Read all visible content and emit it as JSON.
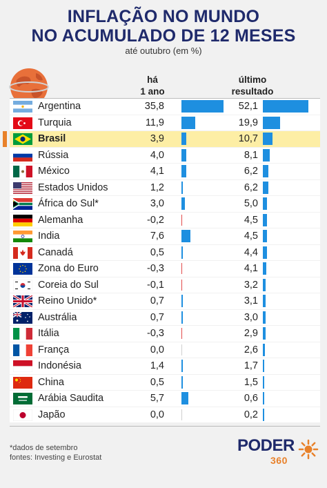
{
  "header": {
    "title_line1": "INFLAÇÃO NO MUNDO",
    "title_line2": "NO ACUMULADO DE 12 MESES",
    "subtitle": "até outubro (em %)"
  },
  "columns": {
    "col1_line1": "há",
    "col1_line2": "1 ano",
    "col2_line1": "último",
    "col2_line2": "resultado"
  },
  "colors": {
    "positive_bar": "#1e8fe0",
    "negative_bar": "#e24a4a",
    "highlight_bg": "#fdeea5",
    "highlight_mark": "#e8812a",
    "title": "#1f2a6b"
  },
  "chart_data": {
    "type": "bar",
    "title": "INFLAÇÃO NO MUNDO NO ACUMULADO DE 12 MESES",
    "subtitle": "até outubro (em %)",
    "categories": [
      "Argentina",
      "Turquia",
      "Brasil",
      "Rússia",
      "México",
      "Estados Unidos",
      "África do Sul*",
      "Alemanha",
      "India",
      "Canadá",
      "Zona do Euro",
      "Coreia do Sul",
      "Reino Unido*",
      "Austrália",
      "Itália",
      "França",
      "Indonésia",
      "China",
      "Arábia Saudita",
      "Japão"
    ],
    "flags": [
      "argentina",
      "turkey",
      "brazil",
      "russia",
      "mexico",
      "usa",
      "south-africa",
      "germany",
      "india",
      "canada",
      "eu",
      "south-korea",
      "uk",
      "australia",
      "italy",
      "france",
      "indonesia",
      "china",
      "saudi-arabia",
      "japan"
    ],
    "highlight": "Brasil",
    "series": [
      {
        "name": "há 1 ano",
        "values": [
          35.8,
          11.9,
          3.9,
          4.0,
          4.1,
          1.2,
          3.0,
          -0.2,
          7.6,
          0.5,
          -0.3,
          -0.1,
          0.7,
          0.7,
          -0.3,
          0.0,
          1.4,
          0.5,
          5.7,
          0.0
        ],
        "labels": [
          "35,8",
          "11,9",
          "3,9",
          "4,0",
          "4,1",
          "1,2",
          "3,0",
          "-0,2",
          "7,6",
          "0,5",
          "-0,3",
          "-0,1",
          "0,7",
          "0,7",
          "-0,3",
          "0,0",
          "1,4",
          "0,5",
          "5,7",
          "0,0"
        ]
      },
      {
        "name": "último resultado",
        "values": [
          52.1,
          19.9,
          10.7,
          8.1,
          6.2,
          6.2,
          5.0,
          4.5,
          4.5,
          4.4,
          4.1,
          3.2,
          3.1,
          3.0,
          2.9,
          2.6,
          1.7,
          1.5,
          0.6,
          0.2
        ],
        "labels": [
          "52,1",
          "19,9",
          "10,7",
          "8,1",
          "6,2",
          "6,2",
          "5,0",
          "4,5",
          "4,5",
          "4,4",
          "4,1",
          "3,2",
          "3,1",
          "3,0",
          "2,9",
          "2,6",
          "1,7",
          "1,5",
          "0,6",
          "0,2"
        ]
      }
    ]
  },
  "footer": {
    "note1": "*dados de setembro",
    "note2": "fontes: Investing e Eurostat",
    "logo_word": "PODER",
    "logo_number": "360"
  }
}
